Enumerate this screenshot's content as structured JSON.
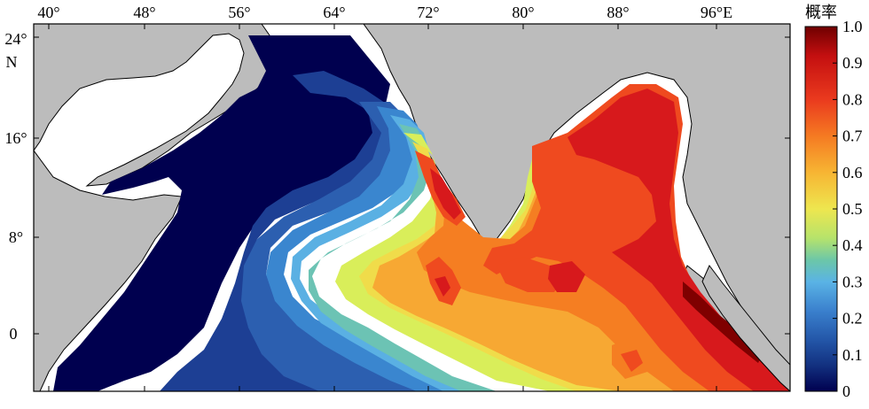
{
  "map": {
    "longitude_ticks": [
      "40°",
      "48°",
      "56°",
      "64°",
      "72°",
      "80°",
      "88°",
      "96°E"
    ],
    "latitude_ticks": [
      "24°",
      "16°",
      "8°",
      "0"
    ],
    "latitude_hemisphere": "N",
    "region": "Arabian Sea, Bay of Bengal and northern Indian Ocean",
    "land_color": "#bcbcbc",
    "coast_color": "#000000"
  },
  "colorbar": {
    "title": "概率",
    "ticks": [
      "1.0",
      "0.9",
      "0.8",
      "0.7",
      "0.6",
      "0.5",
      "0.4",
      "0.3",
      "0.2",
      "0.1",
      "0"
    ],
    "colors_top_to_bottom": [
      "#7f0000",
      "#d7191c",
      "#ef4a1f",
      "#f57e22",
      "#f7a833",
      "#f0dc4a",
      "#d9ee5a",
      "#9ad98a",
      "#6cc3b4",
      "#5ab0e3",
      "#3a86cf",
      "#2c5fb0",
      "#1d3f94",
      "#0c1f6e",
      "#00004f"
    ]
  }
}
